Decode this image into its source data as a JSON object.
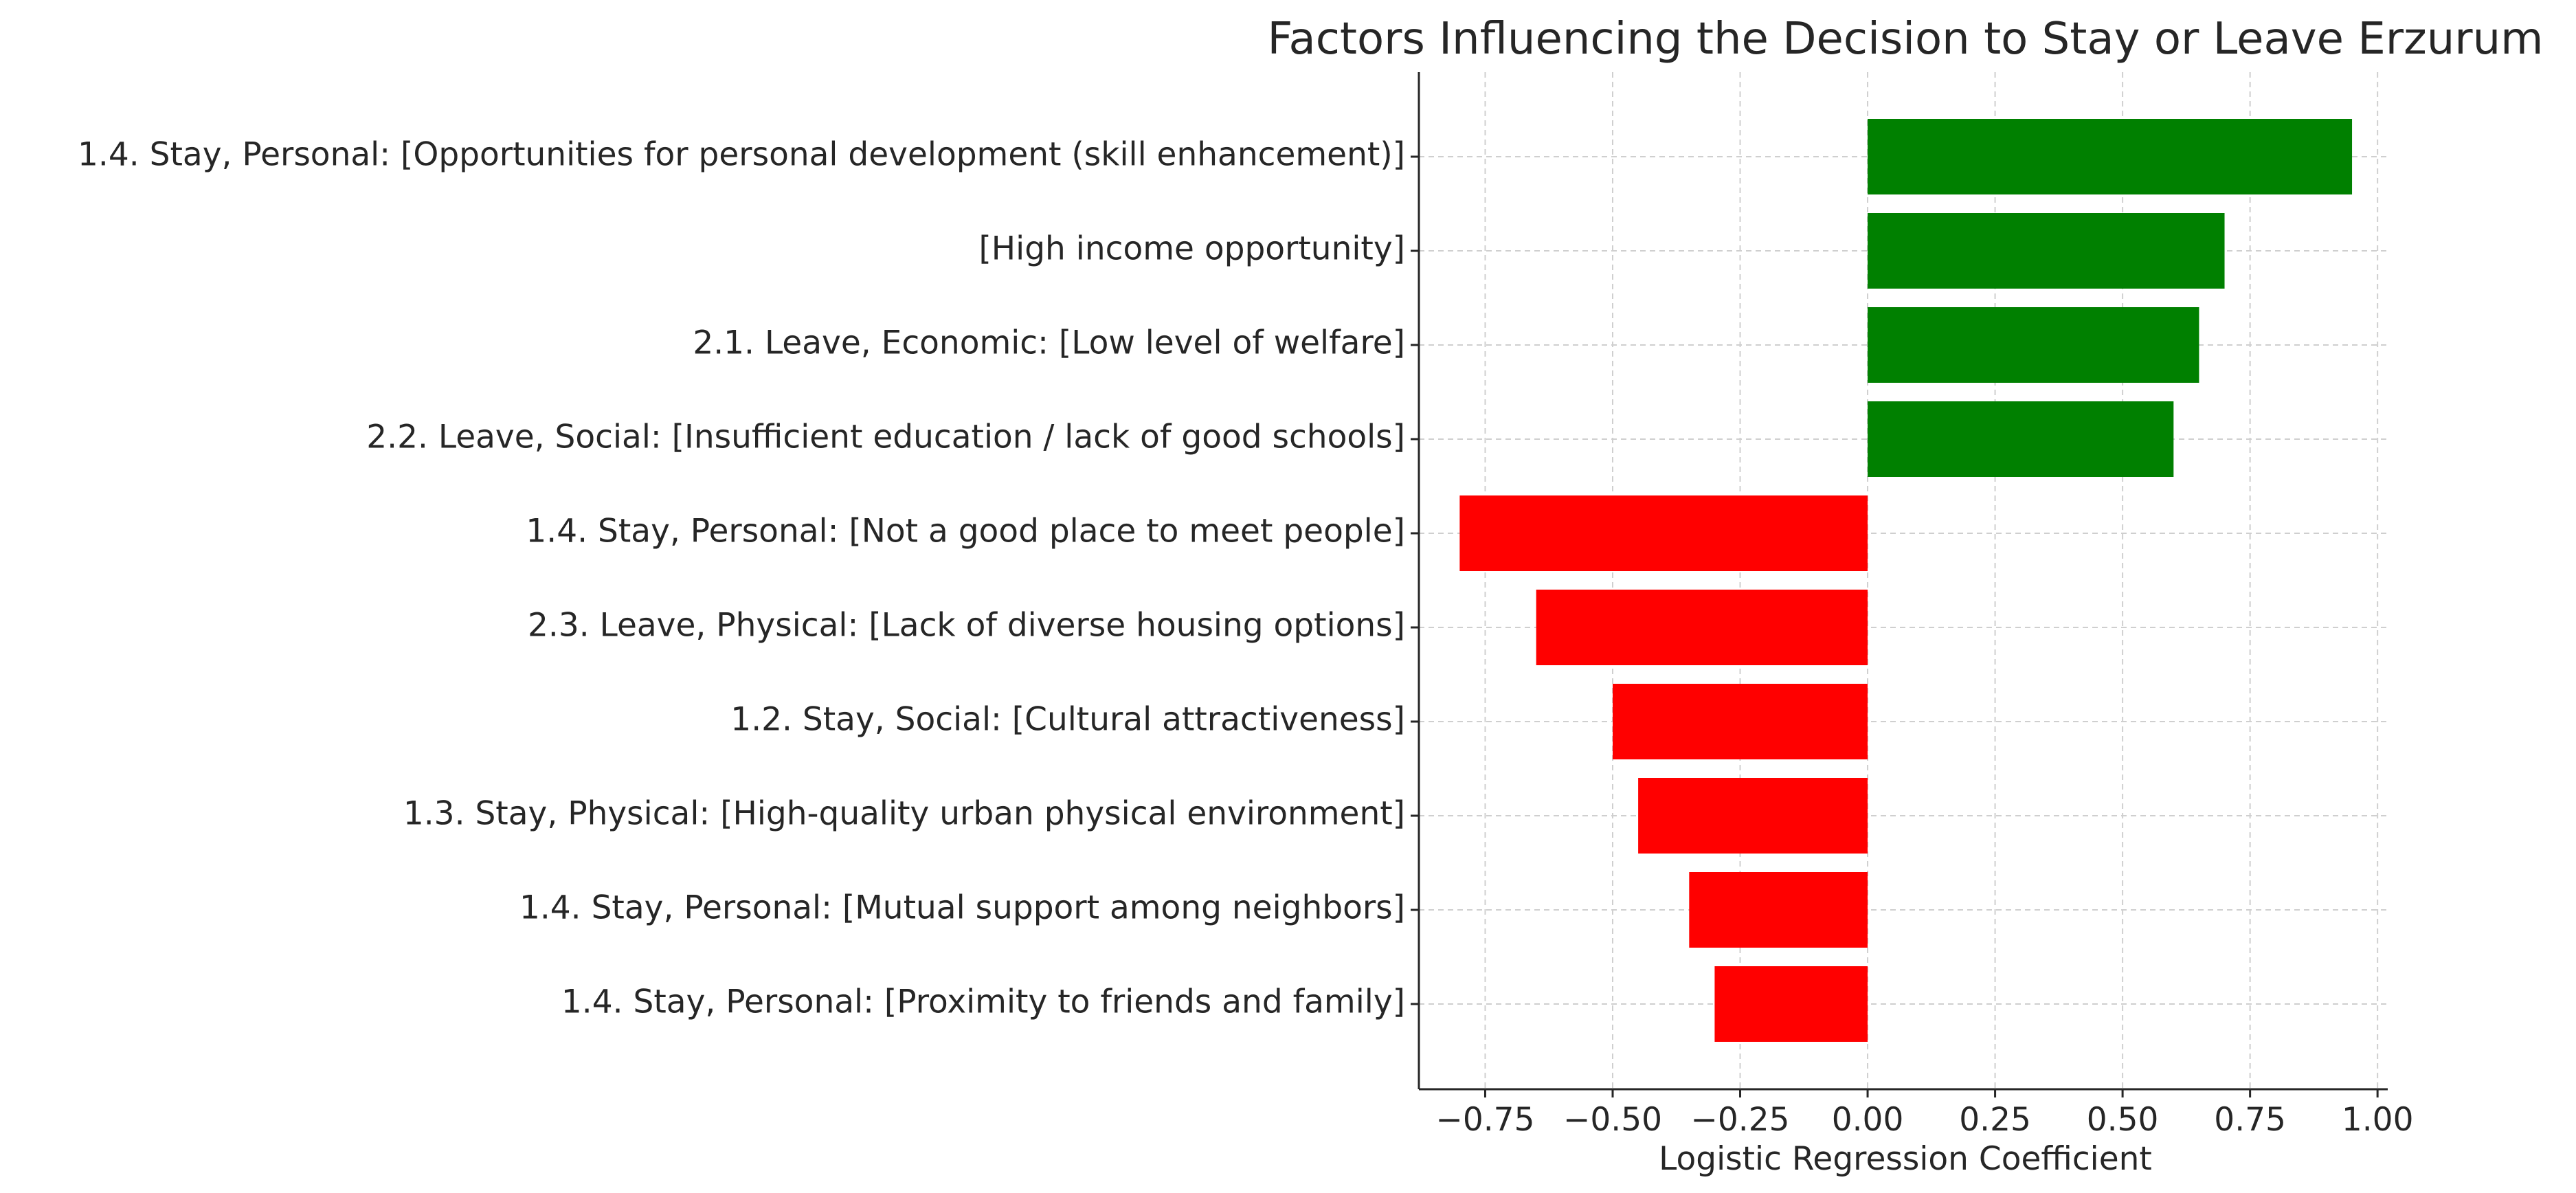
{
  "chart_data": {
    "type": "bar",
    "orientation": "horizontal",
    "title": "Factors Influencing the Decision to Stay or Leave Erzurum",
    "xlabel": "Logistic Regression Coefficient",
    "ylabel": "",
    "xlim": [
      -0.88,
      1.02
    ],
    "grid": true,
    "legend": "none",
    "categories": [
      "1.4. Stay, Personal: [Opportunities for personal development (skill enhancement)]",
      "[High income opportunity]",
      "2.1. Leave, Economic: [Low level of welfare]",
      "2.2. Leave, Social: [Insufficient education / lack of good schools]",
      "1.4. Stay, Personal: [Not a good place to meet people]",
      "2.3. Leave, Physical: [Lack of diverse housing options]",
      "1.2. Stay, Social: [Cultural attractiveness]",
      "1.3. Stay, Physical: [High-quality urban physical environment]",
      "1.4. Stay, Personal: [Mutual support among neighbors]",
      "1.4. Stay, Personal: [Proximity to friends and family]"
    ],
    "values": [
      0.95,
      0.7,
      0.65,
      0.6,
      -0.8,
      -0.65,
      -0.5,
      -0.45,
      -0.35,
      -0.3
    ],
    "x_ticks": [
      -0.75,
      -0.5,
      -0.25,
      0.0,
      0.25,
      0.5,
      0.75,
      1.0
    ],
    "x_tick_labels": [
      "−0.75",
      "−0.50",
      "−0.25",
      "0.00",
      "0.25",
      "0.50",
      "0.75",
      "1.00"
    ],
    "colors": {
      "positive": "#008000",
      "negative": "#ff0000"
    }
  }
}
